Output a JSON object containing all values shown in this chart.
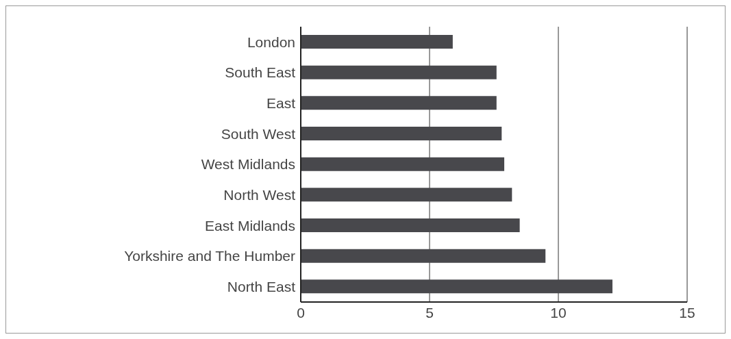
{
  "chart_data": {
    "type": "bar",
    "orientation": "horizontal",
    "categories": [
      "London",
      "South East",
      "East",
      "South West",
      "West Midlands",
      "North West",
      "East Midlands",
      "Yorkshire and The Humber",
      "North East"
    ],
    "values": [
      5.9,
      7.6,
      7.6,
      7.8,
      7.9,
      8.2,
      8.5,
      9.5,
      12.1
    ],
    "color": "#48484c",
    "xlim": [
      0,
      15
    ],
    "xticks": [
      0,
      5,
      10,
      15
    ],
    "grid": "x"
  }
}
